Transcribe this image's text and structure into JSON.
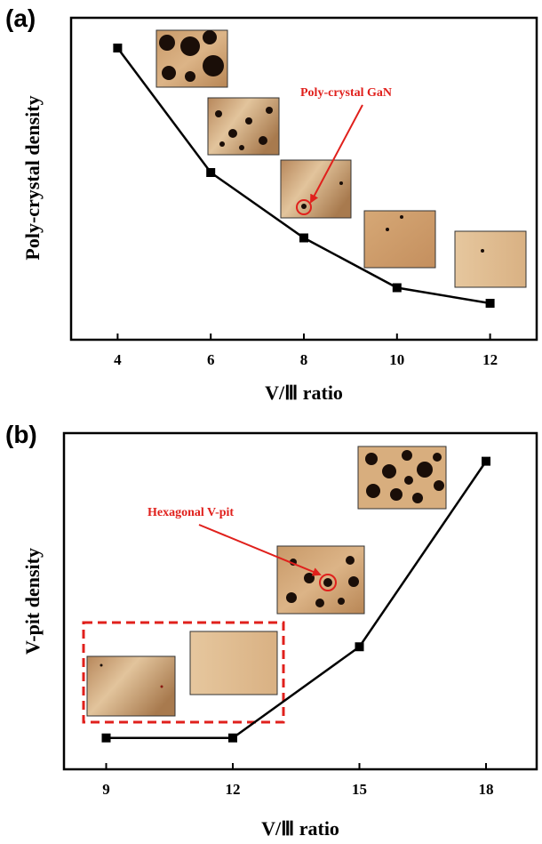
{
  "chart_data": [
    {
      "panel": "(a)",
      "type": "line",
      "xlabel": "V/Ⅲ ratio",
      "ylabel": "Poly-crystal density",
      "xlim": [
        3,
        13
      ],
      "ylim": [
        0,
        1
      ],
      "x_ticks": [
        "4",
        "6",
        "8",
        "10",
        "12"
      ],
      "y_ticks_shown": false,
      "series": [
        {
          "x": [
            4,
            6,
            8,
            10,
            12
          ],
          "y": [
            0.92,
            0.52,
            0.31,
            0.15,
            0.1
          ],
          "marker": "square",
          "color": "#000000"
        }
      ],
      "annotation": {
        "text": "Poly-crystal GaN",
        "color": "#e0201c"
      },
      "insets": [
        "micrograph-inset",
        "micrograph-inset",
        "micrograph-inset",
        "micrograph-inset",
        "micrograph-inset"
      ]
    },
    {
      "panel": "(b)",
      "type": "line",
      "xlabel": "V/Ⅲ ratio",
      "ylabel": "V-pit density",
      "xlim": [
        8,
        19.2
      ],
      "ylim": [
        0,
        1
      ],
      "x_ticks": [
        "9",
        "12",
        "15",
        "18"
      ],
      "y_ticks_shown": false,
      "series": [
        {
          "x": [
            9,
            12,
            15,
            18
          ],
          "y": [
            0.08,
            0.08,
            0.36,
            0.93
          ],
          "marker": "square",
          "color": "#000000"
        }
      ],
      "annotation": {
        "text": "Hexagonal V-pit",
        "color": "#e0201c"
      },
      "insets": [
        "micrograph-inset",
        "micrograph-inset",
        "micrograph-inset",
        "micrograph-inset"
      ],
      "highlight_box": {
        "style": "dashed",
        "color": "#e0201c"
      }
    }
  ]
}
